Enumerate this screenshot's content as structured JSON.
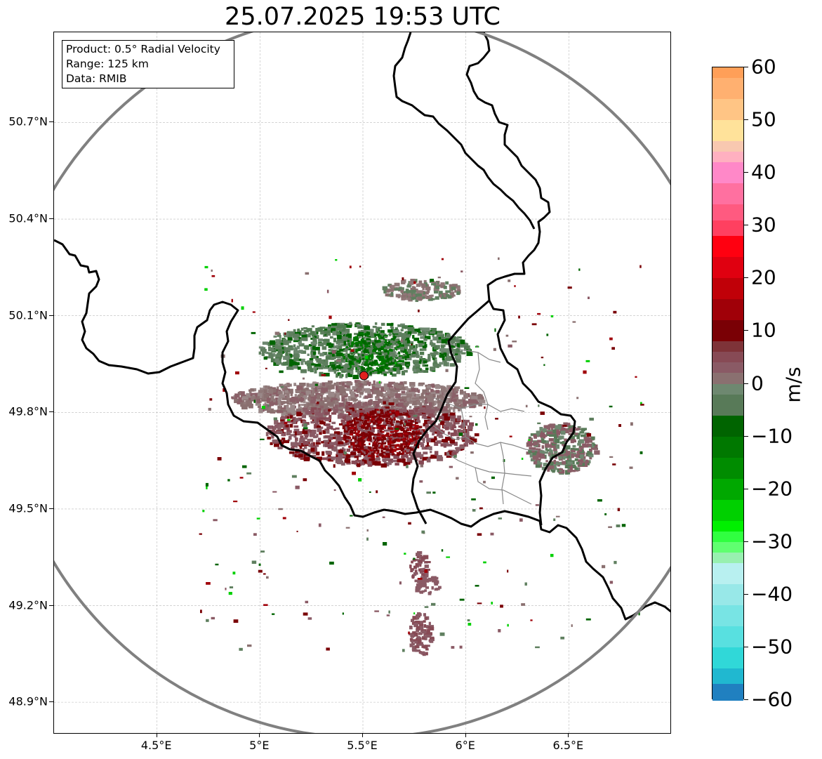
{
  "title": "25.07.2025 19:53 UTC",
  "info_box": {
    "product": "Product: 0.5° Radial Velocity",
    "range": "Range: 125 km",
    "data": "Data: RMIB"
  },
  "axes": {
    "lat_labels": [
      "50.7°N",
      "50.4°N",
      "50.1°N",
      "49.8°N",
      "49.5°N",
      "49.2°N",
      "48.9°N"
    ],
    "lon_labels": [
      "4.5°E",
      "5°E",
      "5.5°E",
      "6°E",
      "6.5°E"
    ],
    "lat_values": [
      50.7,
      50.4,
      50.1,
      49.8,
      49.5,
      49.2,
      48.9
    ],
    "lon_values": [
      4.5,
      5.0,
      5.5,
      6.0,
      6.5
    ],
    "lon_range": [
      4.0,
      7.0
    ],
    "lat_range": [
      48.8,
      50.98
    ],
    "grid": true
  },
  "radar": {
    "site_lon": 5.505,
    "site_lat": 49.914,
    "range_km": 125,
    "site_marker_color": "#e02020",
    "range_ring_color": "#808080"
  },
  "colorbar": {
    "unit": "m/s",
    "min": -60,
    "max": 60,
    "tick_labels": [
      "60",
      "50",
      "40",
      "30",
      "20",
      "10",
      "0",
      "−10",
      "−20",
      "−30",
      "−40",
      "−50",
      "−60"
    ],
    "tick_values": [
      60,
      50,
      40,
      30,
      20,
      10,
      0,
      -10,
      -20,
      -30,
      -40,
      -50,
      -60
    ],
    "segments": [
      {
        "from": 58,
        "to": 60,
        "color": "#ff9f58"
      },
      {
        "from": 54,
        "to": 58,
        "color": "#ffb070"
      },
      {
        "from": 50,
        "to": 54,
        "color": "#ffc585"
      },
      {
        "from": 46,
        "to": 50,
        "color": "#ffe29a"
      },
      {
        "from": 44,
        "to": 46,
        "color": "#f8c8b0"
      },
      {
        "from": 42,
        "to": 44,
        "color": "#ffb0c0"
      },
      {
        "from": 38,
        "to": 42,
        "color": "#ff88c8"
      },
      {
        "from": 34,
        "to": 38,
        "color": "#ff70a0"
      },
      {
        "from": 31,
        "to": 34,
        "color": "#ff5a80"
      },
      {
        "from": 28,
        "to": 31,
        "color": "#ff4060"
      },
      {
        "from": 24,
        "to": 28,
        "color": "#ff0010"
      },
      {
        "from": 20,
        "to": 24,
        "color": "#e00010"
      },
      {
        "from": 16,
        "to": 20,
        "color": "#c00008"
      },
      {
        "from": 12,
        "to": 16,
        "color": "#a00008"
      },
      {
        "from": 8,
        "to": 12,
        "color": "#7a0005"
      },
      {
        "from": 6,
        "to": 8,
        "color": "#7e3338"
      },
      {
        "from": 4,
        "to": 6,
        "color": "#874a55"
      },
      {
        "from": 2,
        "to": 4,
        "color": "#8a5a65"
      },
      {
        "from": 0,
        "to": 2,
        "color": "#8a7070"
      },
      {
        "from": -2,
        "to": 0,
        "color": "#6e8870"
      },
      {
        "from": -6,
        "to": -2,
        "color": "#587a58"
      },
      {
        "from": -10,
        "to": -6,
        "color": "#006400"
      },
      {
        "from": -14,
        "to": -10,
        "color": "#007800"
      },
      {
        "from": -18,
        "to": -14,
        "color": "#008c00"
      },
      {
        "from": -22,
        "to": -18,
        "color": "#00a800"
      },
      {
        "from": -26,
        "to": -22,
        "color": "#00d000"
      },
      {
        "from": -28,
        "to": -26,
        "color": "#00f000"
      },
      {
        "from": -30,
        "to": -28,
        "color": "#30ff40"
      },
      {
        "from": -32,
        "to": -30,
        "color": "#60ff70"
      },
      {
        "from": -34,
        "to": -32,
        "color": "#98f0b0"
      },
      {
        "from": -38,
        "to": -34,
        "color": "#b8f0f0"
      },
      {
        "from": -42,
        "to": -38,
        "color": "#98e8e8"
      },
      {
        "from": -46,
        "to": -42,
        "color": "#78e4e4"
      },
      {
        "from": -50,
        "to": -46,
        "color": "#58e0e0"
      },
      {
        "from": -54,
        "to": -50,
        "color": "#30d8d8"
      },
      {
        "from": -57,
        "to": -54,
        "color": "#20b8d0"
      },
      {
        "from": -60,
        "to": -57,
        "color": "#2080c0"
      }
    ]
  },
  "colors": {
    "border": "#000000",
    "district": "#888888",
    "grid": "#bbbbbb",
    "approaching_dark": "#006400",
    "approaching_mid": "#5f7f5f",
    "receding_dark": "#7a0005",
    "receding_mid": "#8a6068",
    "neutral": "#8a7070"
  }
}
